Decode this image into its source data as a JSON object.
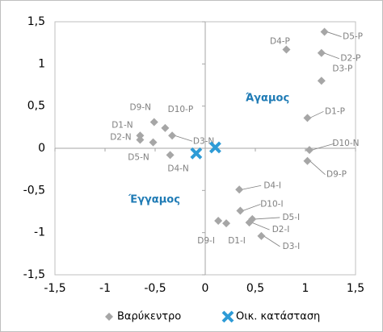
{
  "chart_data": {
    "type": "scatter",
    "xlim": [
      -1.5,
      1.5
    ],
    "ylim": [
      -1.5,
      1.5
    ],
    "xticks": [
      {
        "value": -1.5,
        "label": "-1,5"
      },
      -1,
      {
        "value": -0.5,
        "label": "-0,5"
      },
      0,
      {
        "value": 0.5,
        "label": "0,5"
      },
      1,
      {
        "value": 1.5,
        "label": "1,5"
      }
    ],
    "yticks": [
      {
        "value": -1.5,
        "label": "-1,5"
      },
      -1,
      {
        "value": -0.5,
        "label": "-0,5"
      },
      0,
      {
        "value": 0.5,
        "label": "0,5"
      },
      1,
      {
        "value": 1.5,
        "label": "1,5"
      }
    ],
    "annotations": [
      "Άγαμος",
      "Έγγαμος"
    ],
    "series": [
      {
        "name": "Βαρύκεντρο",
        "color": "#a6a6a6",
        "marker": "diamond",
        "labels": [
          "D5-P",
          "D4-P",
          "D2-P",
          "D3-P",
          "D1-P",
          "D10-N",
          "D9-P",
          "D1-N",
          "D2-N",
          "D9-N",
          "D10-P",
          "D3-N",
          "D5-N",
          "D4-N",
          "D4-I",
          "D10-I",
          "D5-I",
          "D2-I",
          "D3-I",
          "D9-I",
          "D1-I"
        ],
        "x": [
          1.19,
          0.81,
          1.16,
          1.16,
          1.02,
          1.04,
          1.02,
          -0.65,
          -0.65,
          -0.51,
          -0.4,
          -0.33,
          -0.52,
          -0.35,
          0.34,
          0.35,
          0.47,
          0.44,
          0.56,
          0.13,
          0.21
        ],
        "values": [
          1.38,
          1.17,
          1.13,
          0.8,
          0.36,
          -0.02,
          -0.15,
          0.15,
          0.1,
          0.31,
          0.24,
          0.15,
          0.07,
          -0.08,
          -0.49,
          -0.74,
          -0.84,
          -0.88,
          -1.04,
          -0.86,
          -0.89
        ]
      },
      {
        "name": "Οικ. κατάσταση",
        "color": "#2e9bd6",
        "marker": "cross",
        "x": [
          -0.09,
          0.1
        ],
        "values": [
          -0.06,
          0.01
        ]
      }
    ]
  }
}
